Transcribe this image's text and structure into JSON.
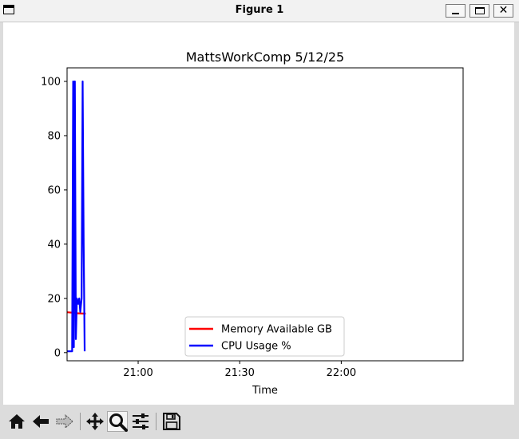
{
  "window": {
    "title": "Figure 1",
    "close_glyph": "✕"
  },
  "toolbar": {
    "items": [
      {
        "icon": "home-icon",
        "tooltip": "Home"
      },
      {
        "icon": "back-arrow-icon",
        "tooltip": "Back"
      },
      {
        "icon": "forward-arrow-icon",
        "tooltip": "Forward"
      },
      {
        "icon": "pan-icon",
        "tooltip": "Pan"
      },
      {
        "icon": "zoom-icon",
        "tooltip": "Zoom",
        "active": true
      },
      {
        "icon": "configure-subplots-icon",
        "tooltip": "Configure subplots"
      },
      {
        "icon": "save-icon",
        "tooltip": "Save"
      }
    ]
  },
  "chart_data": {
    "type": "line",
    "title": "MattsWorkComp 5/12/25",
    "xlabel": "Time",
    "ylabel": "",
    "x_axis": "time",
    "xlim": [
      "20:39",
      "22:36"
    ],
    "ylim": [
      -3,
      105
    ],
    "yticks": [
      0,
      20,
      40,
      60,
      80,
      100
    ],
    "xticks": [
      "21:00",
      "21:30",
      "22:00"
    ],
    "grid": false,
    "legend_position": "lower-center",
    "series": [
      {
        "name": "Memory Available GB",
        "color": "#ff0000",
        "x": [
          "20:39.0",
          "20:41.0",
          "20:42.0",
          "20:44.0",
          "20:44.5"
        ],
        "y": [
          14.9,
          14.7,
          14.5,
          14.4,
          14.4
        ]
      },
      {
        "name": "CPU Usage %",
        "color": "#0000ff",
        "x": [
          "20:39.0",
          "20:40.5",
          "20:40.8",
          "20:41.0",
          "20:41.3",
          "20:41.6",
          "20:41.9",
          "20:42.3",
          "20:42.6",
          "20:42.9",
          "20:43.3",
          "20:43.6",
          "20:43.9",
          "20:44.2"
        ],
        "y": [
          0.5,
          0.5,
          100,
          2,
          100,
          5,
          20,
          18,
          20,
          15,
          20,
          100,
          40,
          0.5
        ]
      }
    ]
  }
}
